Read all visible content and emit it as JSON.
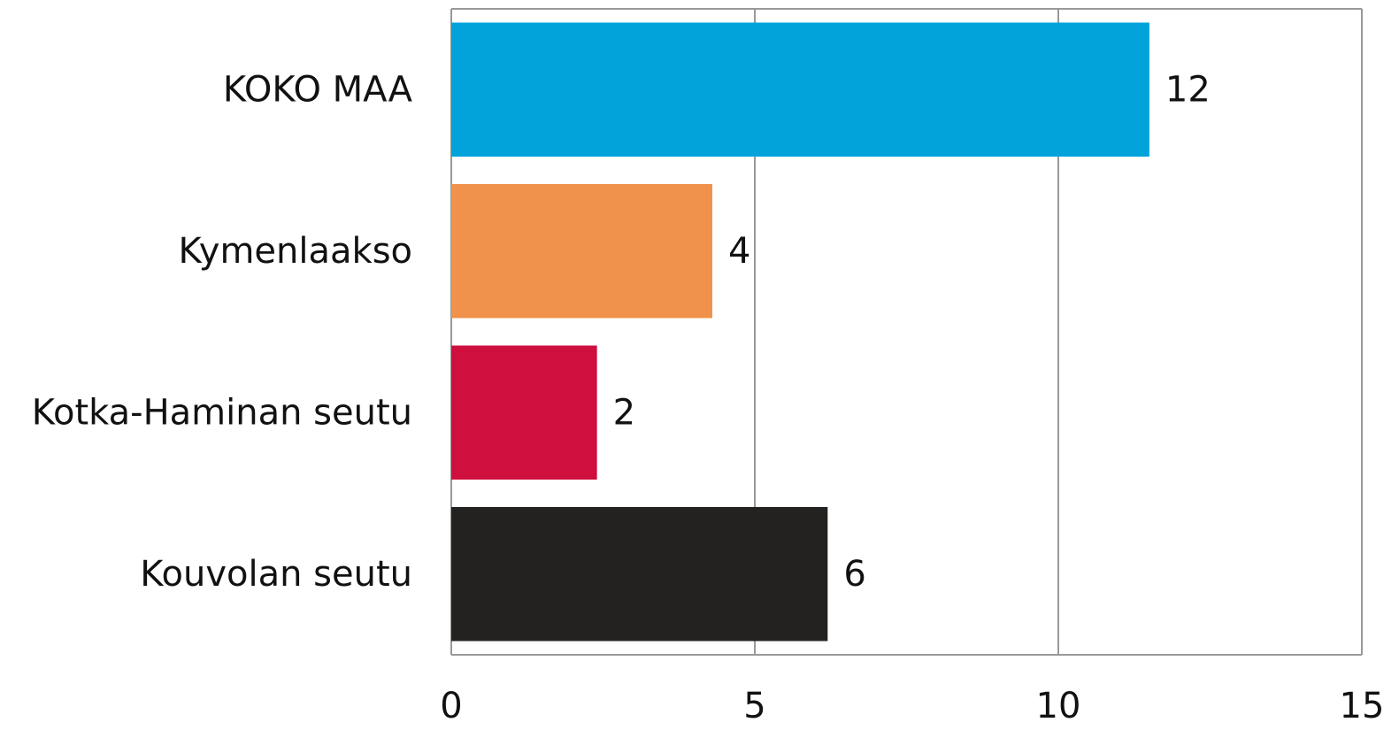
{
  "chart_data": {
    "type": "bar",
    "orientation": "horizontal",
    "categories": [
      "KOKO MAA",
      "Kymenlaakso",
      "Kotka-Haminan seutu",
      "Kouvolan seutu"
    ],
    "values": [
      11.5,
      4.3,
      2.4,
      6.2
    ],
    "value_labels": [
      "12",
      "4",
      "2",
      "6"
    ],
    "colors": [
      "#02a3db",
      "#f0924b",
      "#cf0f3e",
      "#232220"
    ],
    "xlim": [
      0,
      15
    ],
    "xticks": [
      0,
      5,
      10,
      15
    ],
    "grid": true
  }
}
